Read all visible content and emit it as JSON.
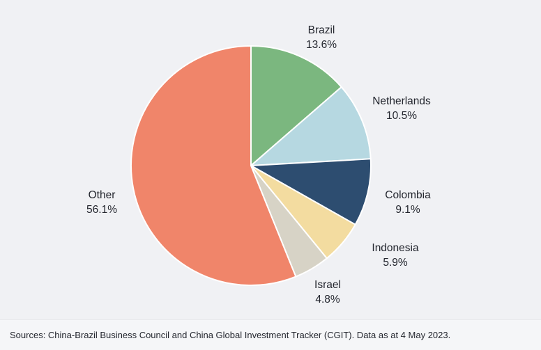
{
  "chart_data": {
    "type": "pie",
    "title": "",
    "direction": "clockwise",
    "start_angle_deg": 0,
    "legend_position": "labels-around-chart",
    "slice_separator_color": "#ffffff",
    "background_color": "#f0f1f4",
    "slices": [
      {
        "label": "Brazil",
        "value": 13.6,
        "pct_label": "13.6%",
        "color": "#7bb77f"
      },
      {
        "label": "Netherlands",
        "value": 10.5,
        "pct_label": "10.5%",
        "color": "#b6d8e1"
      },
      {
        "label": "Colombia",
        "value": 9.1,
        "pct_label": "9.1%",
        "color": "#2d4d70"
      },
      {
        "label": "Indonesia",
        "value": 5.9,
        "pct_label": "5.9%",
        "color": "#f3dca0"
      },
      {
        "label": "Israel",
        "value": 4.8,
        "pct_label": "4.8%",
        "color": "#d7d3c6"
      },
      {
        "label": "Other",
        "value": 56.1,
        "pct_label": "56.1%",
        "color": "#f0856a"
      }
    ]
  },
  "footer": {
    "source_text": "Sources: China-Brazil Business Council and China Global Investment Tracker (CGIT). Data as at 4 May 2023."
  }
}
